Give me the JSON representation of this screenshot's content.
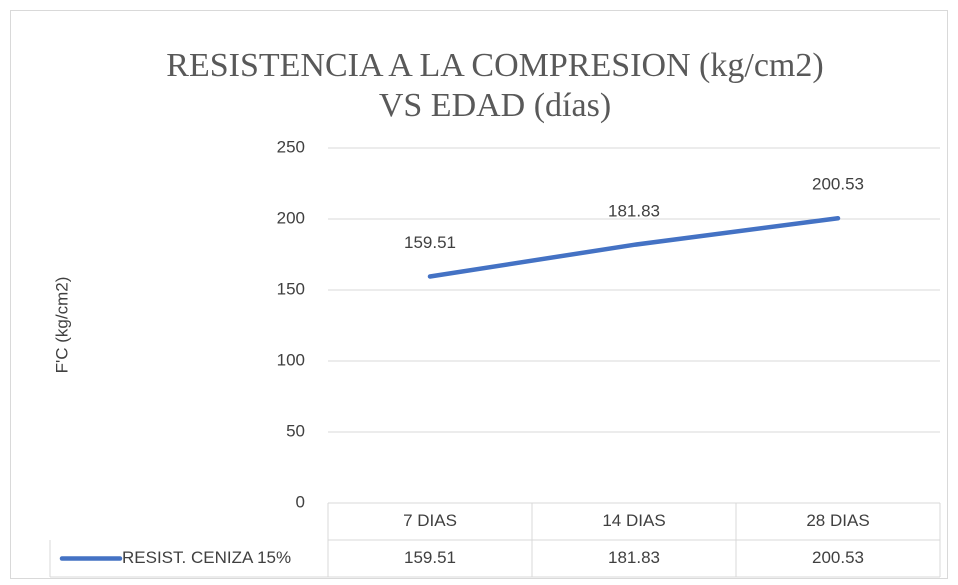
{
  "chart_data": {
    "type": "line",
    "title": [
      "RESISTENCIA A LA COMPRESION (kg/cm2)",
      "VS EDAD (días)"
    ],
    "y_label": "F'C (kg/cm2)",
    "categories": [
      "7 DIAS",
      "14 DIAS",
      "28 DIAS"
    ],
    "series": [
      {
        "name": "RESIST. CENIZA 15%",
        "color": "#4472c4",
        "values": [
          159.51,
          181.83,
          200.53
        ]
      }
    ],
    "ylim": [
      0,
      250
    ],
    "yticks": [
      0,
      50,
      100,
      150,
      200,
      250
    ],
    "grid": true,
    "data_labels": true,
    "data_table": true
  }
}
